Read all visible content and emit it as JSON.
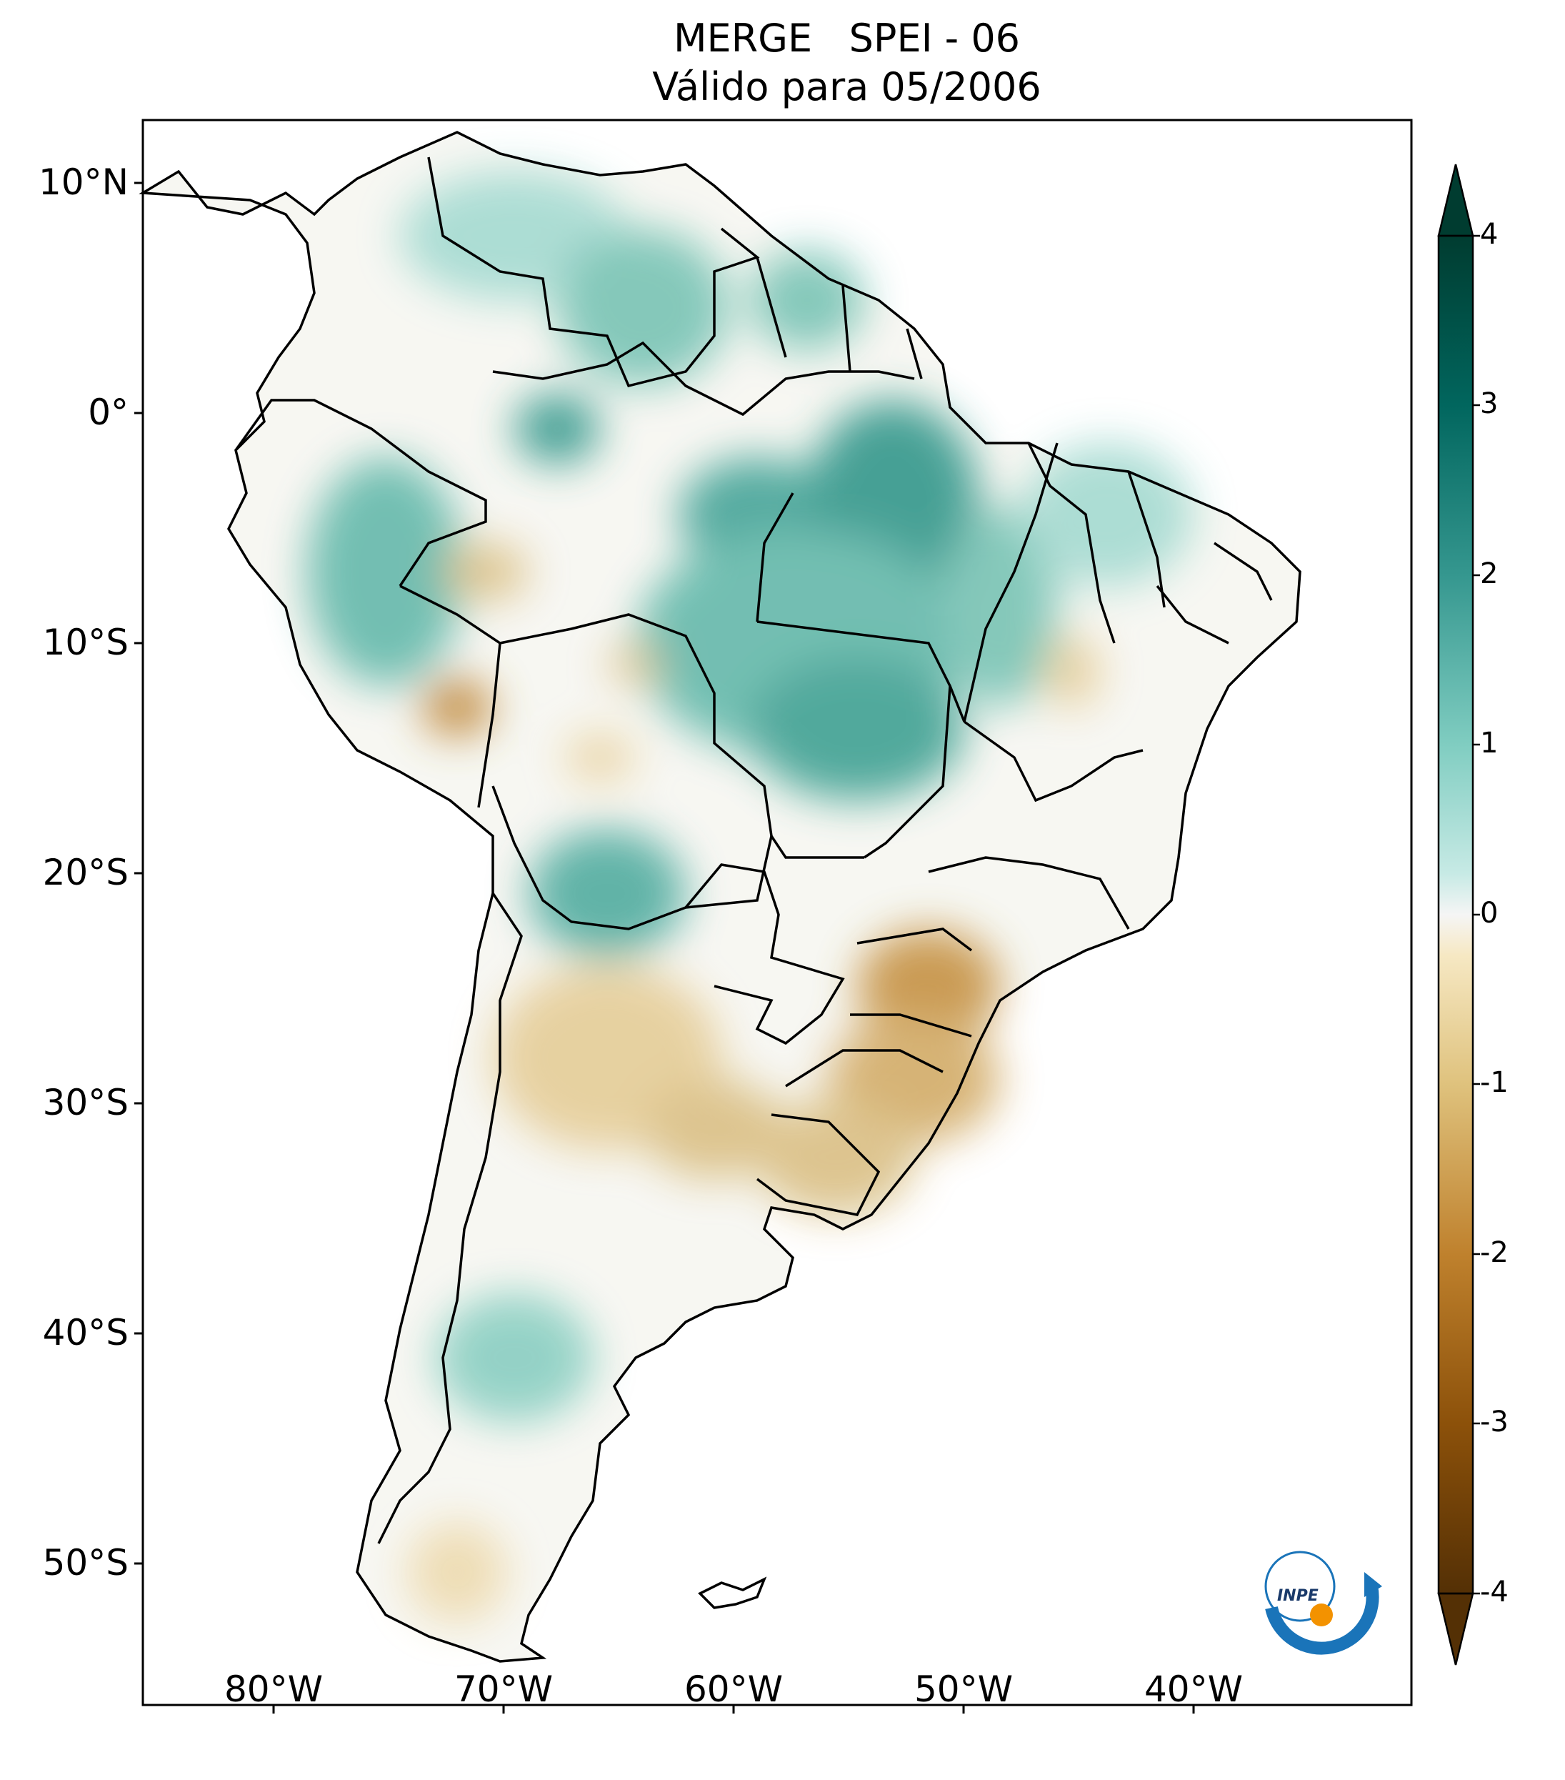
{
  "title": {
    "line1": "MERGE   SPEI - 06",
    "line2": "Válido para 05/2006"
  },
  "axes": {
    "lat_labels": [
      "10°N",
      "0°",
      "10°S",
      "20°S",
      "30°S",
      "40°S",
      "50°S"
    ],
    "lon_labels": [
      "80°W",
      "70°W",
      "60°W",
      "50°W",
      "40°W"
    ]
  },
  "colorbar": {
    "ticks": [
      "4",
      "3",
      "2",
      "1",
      "0",
      "-1",
      "-2",
      "-3",
      "-4"
    ],
    "min": -4,
    "max": 4,
    "colormap": "BrBG",
    "colors": {
      "dry_extreme": "#543005",
      "dry_strong": "#a16a1f",
      "dry_moderate": "#d9b26b",
      "dry_mild": "#f1e3bf",
      "neutral": "#f5f5f5",
      "wet_mild": "#c2e7e0",
      "wet_moderate": "#6fbfb1",
      "wet_strong": "#218178",
      "wet_extreme": "#003c30"
    }
  },
  "logo": {
    "text": "INPE",
    "colors": {
      "arc": "#1a74b9",
      "dot": "#f39200"
    }
  }
}
